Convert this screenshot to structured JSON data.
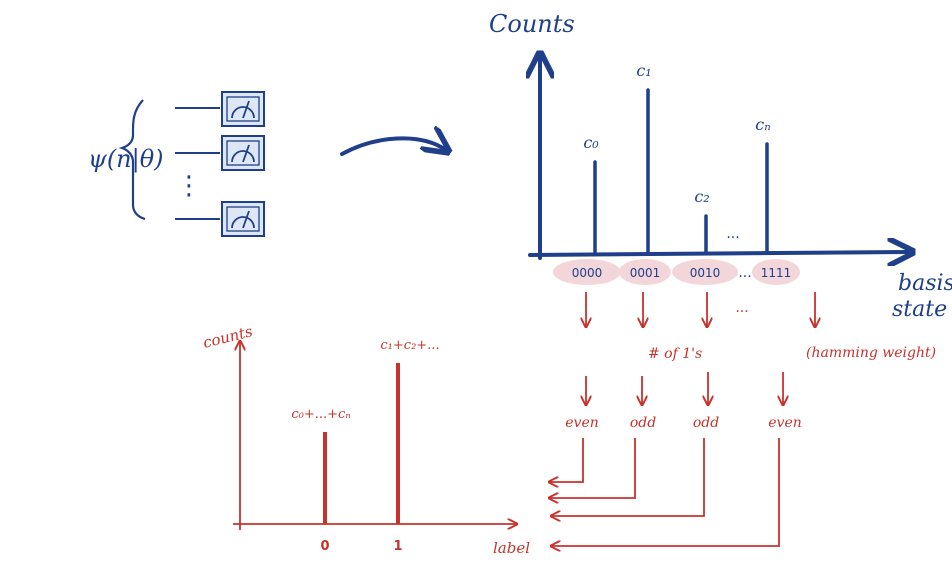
{
  "colors": {
    "blue": "#1f3f8a",
    "red": "#c8322c",
    "highlight": "#f3d6da",
    "meter_fill": "#dde7f5"
  },
  "circuit": {
    "state_label": "ψ(n|θ)",
    "vdots": "⋮",
    "meters": [
      "measure-icon",
      "measure-icon",
      "measure-icon"
    ]
  },
  "top_chart": {
    "y_label": "Counts",
    "x_label_line1": "basis",
    "x_label_line2": "state",
    "bars": [
      {
        "label": "c₀",
        "value": 5
      },
      {
        "label": "c₁",
        "value": 9
      },
      {
        "label": "c₂",
        "value": 2
      },
      {
        "label": "cₙ",
        "value": 6
      }
    ],
    "gap_dots": "...",
    "states": [
      "0000",
      "0001",
      "0010",
      "1111"
    ],
    "states_gap": "...",
    "under_dots": "..."
  },
  "mapping": {
    "count_label": "# of 1's",
    "hamming_label": "(hamming weight)",
    "parities": [
      "even",
      "odd",
      "odd",
      "even"
    ]
  },
  "bottom_chart": {
    "y_label": "counts",
    "x_label": "label",
    "categories": [
      "0",
      "1"
    ],
    "bars": [
      {
        "label": "c₀+...+cₙ",
        "value": 4
      },
      {
        "label": "c₁+c₂+...",
        "value": 7
      }
    ]
  }
}
